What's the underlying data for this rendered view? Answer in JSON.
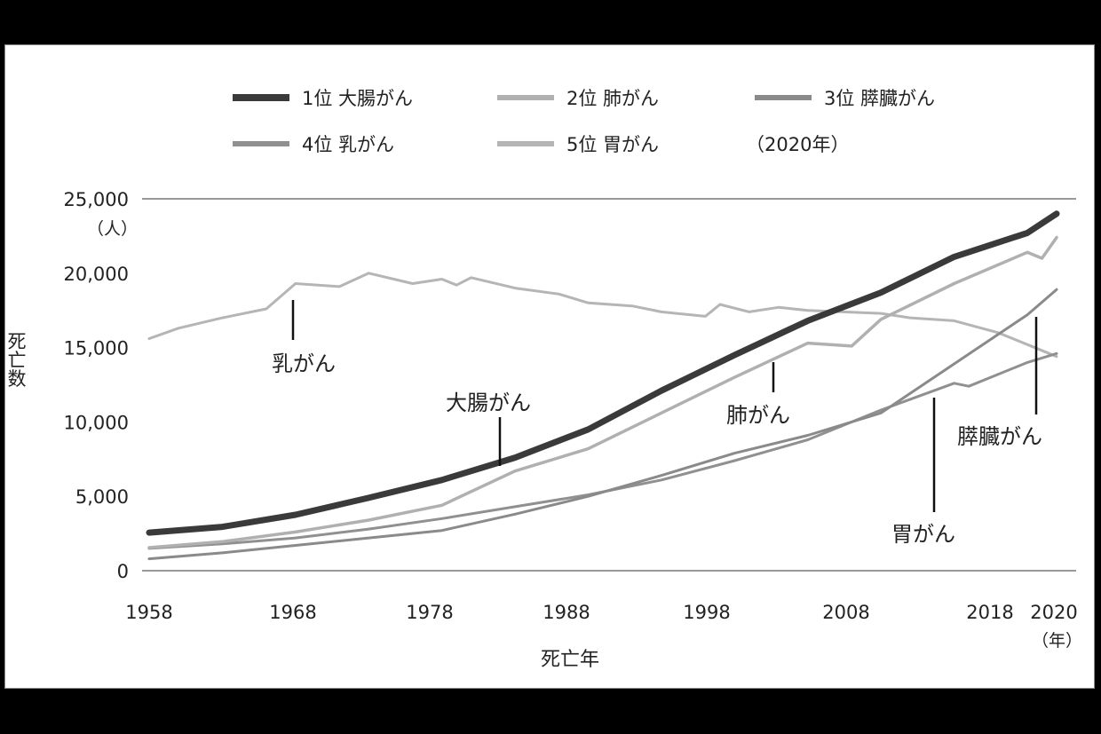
{
  "chart_data": {
    "type": "line",
    "xlabel": "死亡年",
    "xunit": "（年）",
    "ylabel": "死亡数",
    "yunit": "（人）",
    "xlim": [
      1958,
      2020
    ],
    "ylim": [
      0,
      25000
    ],
    "xticks": [
      "1958",
      "1968",
      "1978",
      "1988",
      "1998",
      "2008",
      "2018",
      "2020"
    ],
    "yticks": [
      "0",
      "5,000",
      "10,000",
      "15,000",
      "20,000",
      "25,000"
    ],
    "legend_note": "（2020年）",
    "legend_position": "top",
    "series": [
      {
        "name": "1位 大腸がん",
        "color": "#3a3a3a",
        "x": [
          1958,
          1963,
          1968,
          1973,
          1978,
          1983,
          1988,
          1993,
          1998,
          2003,
          2008,
          2013,
          2018,
          2020
        ],
        "y": [
          2560,
          2950,
          3760,
          4900,
          6100,
          7600,
          9500,
          12100,
          14500,
          16800,
          18700,
          21100,
          22700,
          24000
        ]
      },
      {
        "name": "2位 肺がん",
        "color": "#b0b0b0",
        "x": [
          1958,
          1963,
          1968,
          1973,
          1978,
          1983,
          1988,
          1993,
          1998,
          2003,
          2006,
          2008,
          2013,
          2018,
          2019,
          2020
        ],
        "y": [
          1550,
          1950,
          2600,
          3400,
          4400,
          6700,
          8200,
          10600,
          13000,
          15300,
          15100,
          16900,
          19300,
          21400,
          21000,
          22400
        ]
      },
      {
        "name": "3位 膵臓がん",
        "color": "#8a8a8a",
        "x": [
          1958,
          1963,
          1968,
          1973,
          1978,
          1983,
          1988,
          1993,
          1998,
          2003,
          2008,
          2013,
          2018,
          2020
        ],
        "y": [
          800,
          1200,
          1700,
          2200,
          2700,
          3800,
          5000,
          6400,
          7900,
          9100,
          10600,
          13900,
          17200,
          18900
        ]
      },
      {
        "name": "4位 乳がん",
        "color": "#909090",
        "x": [
          1958,
          1963,
          1968,
          1973,
          1978,
          1983,
          1988,
          1993,
          1998,
          2003,
          2008,
          2013,
          2014,
          2018,
          2020
        ],
        "y": [
          1500,
          1800,
          2200,
          2800,
          3500,
          4300,
          5100,
          6100,
          7400,
          8800,
          10800,
          12600,
          12400,
          14000,
          14600
        ]
      },
      {
        "name": "5位 胃がん",
        "color": "#b5b5b5",
        "x": [
          1958,
          1960,
          1963,
          1966,
          1968,
          1971,
          1973,
          1976,
          1978,
          1979,
          1980,
          1983,
          1986,
          1988,
          1991,
          1993,
          1996,
          1997,
          1999,
          2001,
          2003,
          2008,
          2010,
          2013,
          2016,
          2018,
          2020
        ],
        "y": [
          15600,
          16300,
          17000,
          17600,
          19300,
          19100,
          20000,
          19300,
          19600,
          19200,
          19700,
          19000,
          18600,
          18000,
          17800,
          17400,
          17100,
          17900,
          17400,
          17700,
          17500,
          17300,
          17000,
          16800,
          16000,
          15200,
          14400
        ]
      }
    ],
    "annotations": [
      "乳がん",
      "大腸がん",
      "肺がん",
      "胃がん",
      "膵臓がん"
    ],
    "grid": false
  }
}
